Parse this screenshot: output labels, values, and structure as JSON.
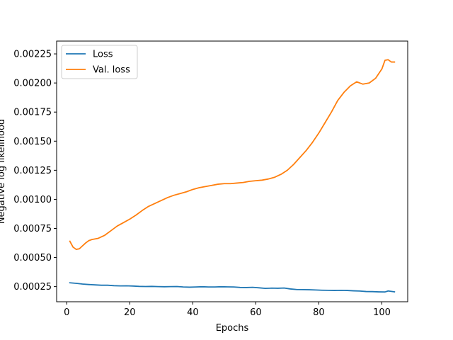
{
  "chart_data": {
    "type": "line",
    "title": "",
    "xlabel": "Epochs",
    "ylabel": "Negative log likelihood",
    "xlim": [
      -3.2,
      108.2
    ],
    "ylim": [
      0.00012,
      0.00236
    ],
    "xticks": [
      0,
      20,
      40,
      60,
      80,
      100
    ],
    "yticks": [
      0.00025,
      0.0005,
      0.00075,
      0.001,
      0.00125,
      0.0015,
      0.00175,
      0.002,
      0.00225
    ],
    "xtick_labels": [
      "0",
      "20",
      "40",
      "60",
      "80",
      "100"
    ],
    "ytick_labels": [
      "0.00025",
      "0.00050",
      "0.00075",
      "0.00100",
      "0.00125",
      "0.00150",
      "0.00175",
      "0.00200",
      "0.00225"
    ],
    "grid": false,
    "legend": "top-left",
    "series": [
      {
        "name": "Loss",
        "color": "#1f77b4",
        "x": [
          1,
          3,
          5,
          7,
          9,
          11,
          13,
          15,
          17,
          19,
          21,
          23,
          25,
          27,
          29,
          31,
          33,
          35,
          37,
          39,
          41,
          43,
          45,
          47,
          49,
          51,
          53,
          55,
          57,
          59,
          61,
          63,
          65,
          67,
          69,
          71,
          73,
          75,
          77,
          79,
          81,
          83,
          85,
          87,
          89,
          91,
          93,
          95,
          97,
          99,
          101,
          102,
          104
        ],
        "y": [
          0.000283,
          0.000278,
          0.000272,
          0.000268,
          0.000265,
          0.000262,
          0.000262,
          0.000258,
          0.000256,
          0.000257,
          0.000255,
          0.000252,
          0.000251,
          0.000252,
          0.00025,
          0.000249,
          0.00025,
          0.000251,
          0.000247,
          0.000245,
          0.000247,
          0.000249,
          0.000247,
          0.000247,
          0.000249,
          0.000248,
          0.000247,
          0.000243,
          0.000242,
          0.000244,
          0.00024,
          0.000235,
          0.000237,
          0.000236,
          0.000238,
          0.00023,
          0.000225,
          0.000224,
          0.000223,
          0.000221,
          0.000219,
          0.000218,
          0.000217,
          0.000218,
          0.000217,
          0.000214,
          0.000212,
          0.000208,
          0.000207,
          0.000205,
          0.000204,
          0.000213,
          0.000205
        ]
      },
      {
        "name": "Val. loss",
        "color": "#ff7f0e",
        "x": [
          1,
          2,
          3,
          4,
          5,
          6,
          7,
          8,
          10,
          12,
          14,
          16,
          18,
          20,
          22,
          24,
          26,
          28,
          30,
          32,
          34,
          36,
          38,
          40,
          42,
          44,
          46,
          48,
          50,
          52,
          54,
          56,
          58,
          60,
          62,
          64,
          66,
          68,
          70,
          72,
          74,
          76,
          78,
          80,
          82,
          84,
          86,
          88,
          90,
          92,
          94,
          96,
          98,
          100,
          101,
          102,
          103,
          104
        ],
        "y": [
          0.00064,
          0.00059,
          0.00057,
          0.000575,
          0.0006,
          0.000625,
          0.000645,
          0.000655,
          0.000665,
          0.00069,
          0.00073,
          0.00077,
          0.0008,
          0.00083,
          0.000865,
          0.000905,
          0.00094,
          0.000965,
          0.00099,
          0.001015,
          0.001035,
          0.00105,
          0.001065,
          0.001085,
          0.0011,
          0.00111,
          0.00112,
          0.00113,
          0.001135,
          0.001135,
          0.00114,
          0.001145,
          0.001155,
          0.00116,
          0.001165,
          0.001175,
          0.00119,
          0.001215,
          0.00125,
          0.0013,
          0.00136,
          0.00142,
          0.00149,
          0.00157,
          0.00166,
          0.00175,
          0.00185,
          0.00192,
          0.001975,
          0.00201,
          0.00199,
          0.002,
          0.00204,
          0.00212,
          0.002195,
          0.0022,
          0.00218,
          0.00218
        ]
      }
    ]
  }
}
